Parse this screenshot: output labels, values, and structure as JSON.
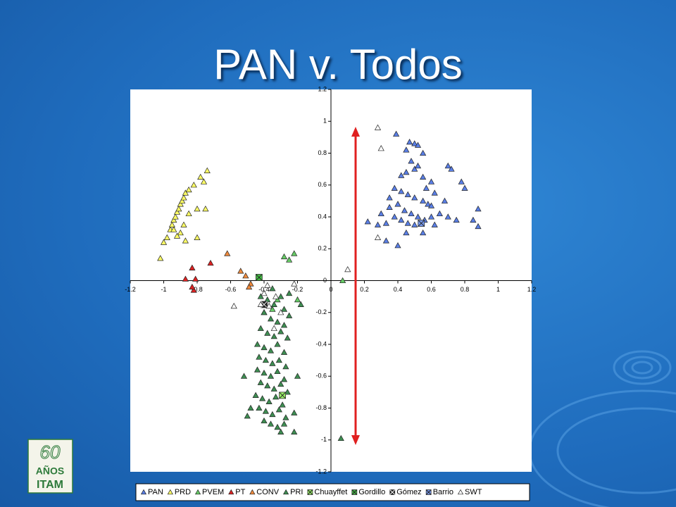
{
  "slide_title": "PAN v. Todos",
  "logo": {
    "number": "60",
    "line1": "AÑOS",
    "line2": "ITAM"
  },
  "chart_data": {
    "type": "scatter",
    "xlim": [
      -1.2,
      1.2
    ],
    "ylim": [
      -1.2,
      1.2
    ],
    "xticks": [
      -1.2,
      -1,
      -0.8,
      -0.6,
      -0.4,
      -0.2,
      0,
      0.2,
      0.4,
      0.6,
      0.8,
      1,
      1.2
    ],
    "yticks": [
      -1.2,
      -1,
      -0.8,
      -0.6,
      -0.4,
      -0.2,
      0,
      0.2,
      0.4,
      0.6,
      0.8,
      1,
      1.2
    ],
    "grid": false,
    "legend": "bottom",
    "series": [
      {
        "name": "PAN",
        "color": "#5a7fe6",
        "marker": "triangle",
        "x": [
          0.39,
          0.47,
          0.5,
          0.52,
          0.45,
          0.55,
          0.48,
          0.5,
          0.52,
          0.45,
          0.42,
          0.55,
          0.6,
          0.38,
          0.42,
          0.46,
          0.5,
          0.55,
          0.58,
          0.4,
          0.35,
          0.44,
          0.48,
          0.52,
          0.56,
          0.6,
          0.38,
          0.42,
          0.46,
          0.5,
          0.33,
          0.3,
          0.22,
          0.28,
          0.62,
          0.7,
          0.72,
          0.78,
          0.8,
          0.65,
          0.7,
          0.75,
          0.85,
          0.88,
          0.88,
          0.33,
          0.4,
          0.45,
          0.55,
          0.62,
          0.68,
          0.35,
          0.57,
          0.6
        ],
        "y": [
          0.92,
          0.87,
          0.86,
          0.85,
          0.82,
          0.8,
          0.75,
          0.7,
          0.72,
          0.68,
          0.66,
          0.65,
          0.62,
          0.58,
          0.56,
          0.54,
          0.52,
          0.5,
          0.48,
          0.48,
          0.46,
          0.44,
          0.42,
          0.4,
          0.38,
          0.4,
          0.4,
          0.38,
          0.36,
          0.35,
          0.36,
          0.42,
          0.37,
          0.35,
          0.55,
          0.72,
          0.7,
          0.62,
          0.58,
          0.42,
          0.4,
          0.38,
          0.38,
          0.45,
          0.34,
          0.25,
          0.22,
          0.3,
          0.3,
          0.35,
          0.5,
          0.52,
          0.58,
          0.47
        ]
      },
      {
        "name": "PRD",
        "color": "#ffff66",
        "marker": "triangle",
        "x": [
          -1.0,
          -0.98,
          -0.96,
          -0.95,
          -0.94,
          -0.93,
          -0.92,
          -0.91,
          -0.9,
          -0.89,
          -0.88,
          -0.87,
          -0.85,
          -0.82,
          -0.78,
          -0.74,
          -0.76,
          -0.9,
          -0.88,
          -0.92,
          -0.87,
          -0.8,
          -0.75,
          -0.8,
          -1.02,
          -0.85,
          -0.94
        ],
        "y": [
          0.24,
          0.27,
          0.32,
          0.35,
          0.38,
          0.4,
          0.43,
          0.45,
          0.48,
          0.5,
          0.52,
          0.55,
          0.57,
          0.6,
          0.65,
          0.69,
          0.62,
          0.3,
          0.35,
          0.28,
          0.25,
          0.27,
          0.45,
          0.45,
          0.14,
          0.42,
          0.32
        ]
      },
      {
        "name": "PVEM",
        "color": "#66cc66",
        "marker": "triangle",
        "x": [
          -0.22,
          -0.28,
          -0.25,
          0.07,
          -0.32,
          -0.35,
          -0.4,
          -0.2
        ],
        "y": [
          0.17,
          0.15,
          0.13,
          0,
          -0.12,
          -0.18,
          -0.2,
          -0.12
        ]
      },
      {
        "name": "PT",
        "color": "#dd2222",
        "marker": "triangle",
        "x": [
          -0.87,
          -0.83,
          -0.72,
          -0.82,
          -0.83,
          -0.81
        ],
        "y": [
          0.01,
          0.08,
          0.11,
          -0.06,
          -0.04,
          0.01
        ]
      },
      {
        "name": "CONV",
        "color": "#f08a3c",
        "marker": "triangle",
        "x": [
          -0.62,
          -0.54,
          -0.51,
          -0.48,
          -0.49
        ],
        "y": [
          0.17,
          0.06,
          0.03,
          -0.02,
          -0.04
        ]
      },
      {
        "name": "PRI",
        "color": "#3e8e52",
        "marker": "triangle",
        "x": [
          -0.42,
          -0.38,
          -0.34,
          -0.3,
          -0.28,
          -0.4,
          -0.36,
          -0.32,
          -0.28,
          -0.25,
          -0.42,
          -0.38,
          -0.34,
          -0.3,
          -0.26,
          -0.44,
          -0.4,
          -0.36,
          -0.32,
          -0.28,
          -0.43,
          -0.39,
          -0.35,
          -0.31,
          -0.27,
          -0.44,
          -0.4,
          -0.36,
          -0.32,
          -0.28,
          -0.42,
          -0.38,
          -0.34,
          -0.3,
          -0.26,
          -0.45,
          -0.41,
          -0.37,
          -0.33,
          -0.29,
          -0.43,
          -0.39,
          -0.35,
          -0.31,
          -0.27,
          -0.4,
          -0.36,
          -0.32,
          -0.28,
          -0.3,
          -0.5,
          -0.48,
          -0.52,
          -0.2,
          -0.22,
          -0.18,
          -0.35,
          -0.25,
          0.06,
          -0.22
        ],
        "y": [
          -0.1,
          -0.12,
          -0.15,
          -0.1,
          -0.18,
          -0.2,
          -0.24,
          -0.26,
          -0.28,
          -0.22,
          -0.3,
          -0.33,
          -0.35,
          -0.32,
          -0.36,
          -0.4,
          -0.42,
          -0.44,
          -0.4,
          -0.45,
          -0.48,
          -0.5,
          -0.52,
          -0.5,
          -0.54,
          -0.56,
          -0.58,
          -0.6,
          -0.57,
          -0.62,
          -0.64,
          -0.66,
          -0.68,
          -0.65,
          -0.7,
          -0.72,
          -0.74,
          -0.76,
          -0.73,
          -0.78,
          -0.8,
          -0.82,
          -0.84,
          -0.81,
          -0.86,
          -0.88,
          -0.9,
          -0.92,
          -0.9,
          -0.95,
          -0.85,
          -0.8,
          -0.6,
          -0.6,
          -0.83,
          -0.15,
          -0.05,
          -0.08,
          -0.99,
          -0.95
        ]
      },
      {
        "name": "Chuayffet",
        "color": "#99ee66",
        "marker": "xbox",
        "x": [
          -0.29
        ],
        "y": [
          -0.72
        ]
      },
      {
        "name": "Gordillo",
        "color": "#44bb44",
        "marker": "xbox",
        "x": [
          -0.43
        ],
        "y": [
          0.02
        ]
      },
      {
        "name": "Gómez",
        "color": "#222222",
        "marker": "xbox",
        "x": [
          -0.4
        ],
        "y": [
          -0.15
        ]
      },
      {
        "name": "Barrio",
        "color": "#7799ee",
        "marker": "xbox",
        "x": [
          0.54
        ],
        "y": [
          0.36
        ]
      },
      {
        "name": "SWT",
        "color": "#ffffff",
        "marker": "triangle",
        "x": [
          0.28,
          0.3,
          0.1,
          0.28,
          -0.38,
          -0.4,
          -0.33,
          -0.37,
          -0.3,
          -0.42,
          -0.58,
          -0.34,
          -0.22
        ],
        "y": [
          0.96,
          0.83,
          0.07,
          0.27,
          -0.03,
          -0.08,
          -0.1,
          -0.16,
          -0.2,
          -0.15,
          -0.16,
          -0.3,
          -0.02
        ]
      }
    ]
  }
}
